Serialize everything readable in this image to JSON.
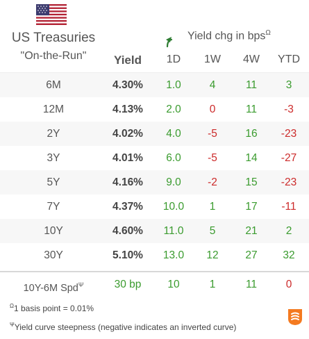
{
  "header": {
    "title_line1": "US Treasuries",
    "title_line2": "\"On-the-Run\"",
    "yield_chg_label": "Yield chg in bps",
    "yield_chg_marker": "Ω",
    "columns": {
      "yield": "Yield",
      "d1": "1D",
      "w1": "1W",
      "w4": "4W",
      "ytd": "YTD"
    }
  },
  "colors": {
    "positive": "#3a9b2e",
    "negative": "#cc2a2a",
    "flag_red": "#b22234",
    "flag_blue": "#3c3b6e",
    "logo": "#f47a20"
  },
  "icons": {
    "flag": "us-flag-icon",
    "refresh": "curved-arrow-icon",
    "logo": "brand-logo-icon"
  },
  "rows": [
    {
      "label": "6M",
      "yield": "4.30%",
      "d1": "1.0",
      "w1": "4",
      "w4": "11",
      "ytd": "3",
      "d1_sign": "pos",
      "w1_sign": "pos",
      "w4_sign": "pos",
      "ytd_sign": "pos"
    },
    {
      "label": "12M",
      "yield": "4.13%",
      "d1": "2.0",
      "w1": "0",
      "w4": "11",
      "ytd": "-3",
      "d1_sign": "pos",
      "w1_sign": "neg",
      "w4_sign": "pos",
      "ytd_sign": "neg"
    },
    {
      "label": "2Y",
      "yield": "4.02%",
      "d1": "4.0",
      "w1": "-5",
      "w4": "16",
      "ytd": "-23",
      "d1_sign": "pos",
      "w1_sign": "neg",
      "w4_sign": "pos",
      "ytd_sign": "neg"
    },
    {
      "label": "3Y",
      "yield": "4.01%",
      "d1": "6.0",
      "w1": "-5",
      "w4": "14",
      "ytd": "-27",
      "d1_sign": "pos",
      "w1_sign": "neg",
      "w4_sign": "pos",
      "ytd_sign": "neg"
    },
    {
      "label": "5Y",
      "yield": "4.16%",
      "d1": "9.0",
      "w1": "-2",
      "w4": "15",
      "ytd": "-23",
      "d1_sign": "pos",
      "w1_sign": "neg",
      "w4_sign": "pos",
      "ytd_sign": "neg"
    },
    {
      "label": "7Y",
      "yield": "4.37%",
      "d1": "10.0",
      "w1": "1",
      "w4": "17",
      "ytd": "-11",
      "d1_sign": "pos",
      "w1_sign": "pos",
      "w4_sign": "pos",
      "ytd_sign": "neg"
    },
    {
      "label": "10Y",
      "yield": "4.60%",
      "d1": "11.0",
      "w1": "5",
      "w4": "21",
      "ytd": "2",
      "d1_sign": "pos",
      "w1_sign": "pos",
      "w4_sign": "pos",
      "ytd_sign": "pos"
    },
    {
      "label": "30Y",
      "yield": "5.10%",
      "d1": "13.0",
      "w1": "12",
      "w4": "27",
      "ytd": "32",
      "d1_sign": "pos",
      "w1_sign": "pos",
      "w4_sign": "pos",
      "ytd_sign": "pos"
    }
  ],
  "spread": {
    "label": "10Y-6M Spd",
    "marker": "Ψ",
    "value": "30 bp",
    "d1": "10",
    "w1": "1",
    "w4": "11",
    "ytd": "0",
    "d1_sign": "pos",
    "w1_sign": "pos",
    "w4_sign": "pos",
    "ytd_sign": "neg"
  },
  "footnotes": {
    "omega_marker": "Ω",
    "omega_text": "1 basis point = 0.01%",
    "psi_marker": "Ψ",
    "psi_text": "Yield curve steepness (negative indicates an inverted curve)"
  }
}
